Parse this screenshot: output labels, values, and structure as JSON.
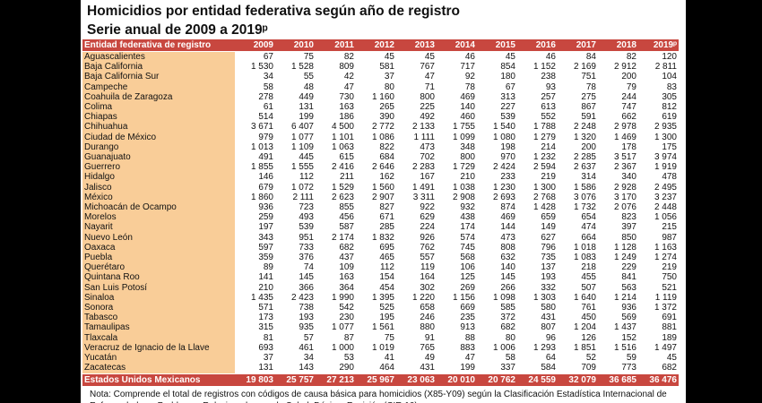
{
  "title": "Homicidios por entidad federativa según año de registro",
  "subtitle": "Serie anual de 2009 a 2019ᵖ",
  "columns": [
    "Entidad federativa de registro",
    "2009",
    "2010",
    "2011",
    "2012",
    "2013",
    "2014",
    "2015",
    "2016",
    "2017",
    "2018",
    "2019ᵖ"
  ],
  "rows": [
    [
      "Aguascalientes",
      "67",
      "75",
      "82",
      "45",
      "45",
      "46",
      "45",
      "46",
      "84",
      "82",
      "120"
    ],
    [
      "Baja California",
      "1 530",
      "1 528",
      "809",
      "581",
      "767",
      "717",
      "854",
      "1 152",
      "2 169",
      "2 912",
      "2 811"
    ],
    [
      "Baja California Sur",
      "34",
      "55",
      "42",
      "37",
      "47",
      "92",
      "180",
      "238",
      "751",
      "200",
      "104"
    ],
    [
      "Campeche",
      "58",
      "48",
      "47",
      "80",
      "71",
      "78",
      "67",
      "93",
      "78",
      "79",
      "83"
    ],
    [
      "Coahuila de Zaragoza",
      "278",
      "449",
      "730",
      "1 160",
      "800",
      "469",
      "313",
      "257",
      "275",
      "244",
      "305"
    ],
    [
      "Colima",
      "61",
      "131",
      "163",
      "265",
      "225",
      "140",
      "227",
      "613",
      "867",
      "747",
      "812"
    ],
    [
      "Chiapas",
      "514",
      "199",
      "186",
      "390",
      "492",
      "460",
      "539",
      "552",
      "591",
      "662",
      "619"
    ],
    [
      "Chihuahua",
      "3 671",
      "6 407",
      "4 500",
      "2 772",
      "2 133",
      "1 755",
      "1 540",
      "1 788",
      "2 248",
      "2 978",
      "2 935"
    ],
    [
      "Ciudad de México",
      "979",
      "1 077",
      "1 101",
      "1 086",
      "1 111",
      "1 099",
      "1 080",
      "1 279",
      "1 320",
      "1 469",
      "1 300"
    ],
    [
      "Durango",
      "1 013",
      "1 109",
      "1 063",
      "822",
      "473",
      "348",
      "198",
      "214",
      "200",
      "178",
      "175"
    ],
    [
      "Guanajuato",
      "491",
      "445",
      "615",
      "684",
      "702",
      "800",
      "970",
      "1 232",
      "2 285",
      "3 517",
      "3 974"
    ],
    [
      "Guerrero",
      "1 855",
      "1 555",
      "2 416",
      "2 646",
      "2 283",
      "1 729",
      "2 424",
      "2 594",
      "2 637",
      "2 367",
      "1 919"
    ],
    [
      "Hidalgo",
      "146",
      "112",
      "211",
      "162",
      "167",
      "210",
      "233",
      "219",
      "314",
      "340",
      "478"
    ],
    [
      "Jalisco",
      "679",
      "1 072",
      "1 529",
      "1 560",
      "1 491",
      "1 038",
      "1 230",
      "1 300",
      "1 586",
      "2 928",
      "2 495"
    ],
    [
      "México",
      "1 860",
      "2 111",
      "2 623",
      "2 907",
      "3 311",
      "2 908",
      "2 693",
      "2 768",
      "3 076",
      "3 170",
      "3 237"
    ],
    [
      "Michoacán de Ocampo",
      "936",
      "723",
      "855",
      "827",
      "922",
      "932",
      "874",
      "1 428",
      "1 732",
      "2 076",
      "2 448"
    ],
    [
      "Morelos",
      "259",
      "493",
      "456",
      "671",
      "629",
      "438",
      "469",
      "659",
      "654",
      "823",
      "1 056"
    ],
    [
      "Nayarit",
      "197",
      "539",
      "587",
      "285",
      "224",
      "174",
      "144",
      "149",
      "474",
      "397",
      "215"
    ],
    [
      "Nuevo León",
      "343",
      "951",
      "2 174",
      "1 832",
      "926",
      "574",
      "473",
      "627",
      "664",
      "850",
      "987"
    ],
    [
      "Oaxaca",
      "597",
      "733",
      "682",
      "695",
      "762",
      "745",
      "808",
      "796",
      "1 018",
      "1 128",
      "1 163"
    ],
    [
      "Puebla",
      "359",
      "376",
      "437",
      "465",
      "557",
      "568",
      "632",
      "735",
      "1 083",
      "1 249",
      "1 274"
    ],
    [
      "Querétaro",
      "89",
      "74",
      "109",
      "112",
      "119",
      "106",
      "140",
      "137",
      "218",
      "229",
      "219"
    ],
    [
      "Quintana Roo",
      "141",
      "145",
      "163",
      "154",
      "164",
      "125",
      "145",
      "193",
      "455",
      "841",
      "750"
    ],
    [
      "San Luis Potosí",
      "210",
      "366",
      "364",
      "454",
      "302",
      "269",
      "266",
      "332",
      "507",
      "563",
      "521"
    ],
    [
      "Sinaloa",
      "1 435",
      "2 423",
      "1 990",
      "1 395",
      "1 220",
      "1 156",
      "1 098",
      "1 303",
      "1 640",
      "1 214",
      "1 119"
    ],
    [
      "Sonora",
      "571",
      "738",
      "542",
      "525",
      "658",
      "669",
      "585",
      "580",
      "761",
      "936",
      "1 372"
    ],
    [
      "Tabasco",
      "173",
      "193",
      "230",
      "195",
      "246",
      "235",
      "372",
      "431",
      "450",
      "569",
      "691"
    ],
    [
      "Tamaulipas",
      "315",
      "935",
      "1 077",
      "1 561",
      "880",
      "913",
      "682",
      "807",
      "1 204",
      "1 437",
      "881"
    ],
    [
      "Tlaxcala",
      "81",
      "57",
      "87",
      "75",
      "91",
      "88",
      "80",
      "96",
      "126",
      "152",
      "189"
    ],
    [
      "Veracruz de Ignacio de la Llave",
      "693",
      "461",
      "1 000",
      "1 019",
      "765",
      "883",
      "1 006",
      "1 293",
      "1 851",
      "1 516",
      "1 497"
    ],
    [
      "Yucatán",
      "37",
      "34",
      "53",
      "41",
      "49",
      "47",
      "58",
      "64",
      "52",
      "59",
      "45"
    ],
    [
      "Zacatecas",
      "131",
      "143",
      "290",
      "464",
      "431",
      "199",
      "337",
      "584",
      "709",
      "773",
      "682"
    ]
  ],
  "total": [
    "Estados Unidos Mexicanos",
    "19 803",
    "25 757",
    "27 213",
    "25 967",
    "23 063",
    "20 010",
    "20 762",
    "24 559",
    "32 079",
    "36 685",
    "36 476"
  ],
  "note": "Nota: Comprende el total de registros con códigos de causa básica para homicidios (X85-Y09) según la Clasificación Estadística Internacional de Enfermedades y Problemas Relacionados con la Salud, Décima Revisión (CIE-10).",
  "colors": {
    "header": "#c8473f",
    "name_column": "#f9cd98",
    "frame": "#000000"
  }
}
